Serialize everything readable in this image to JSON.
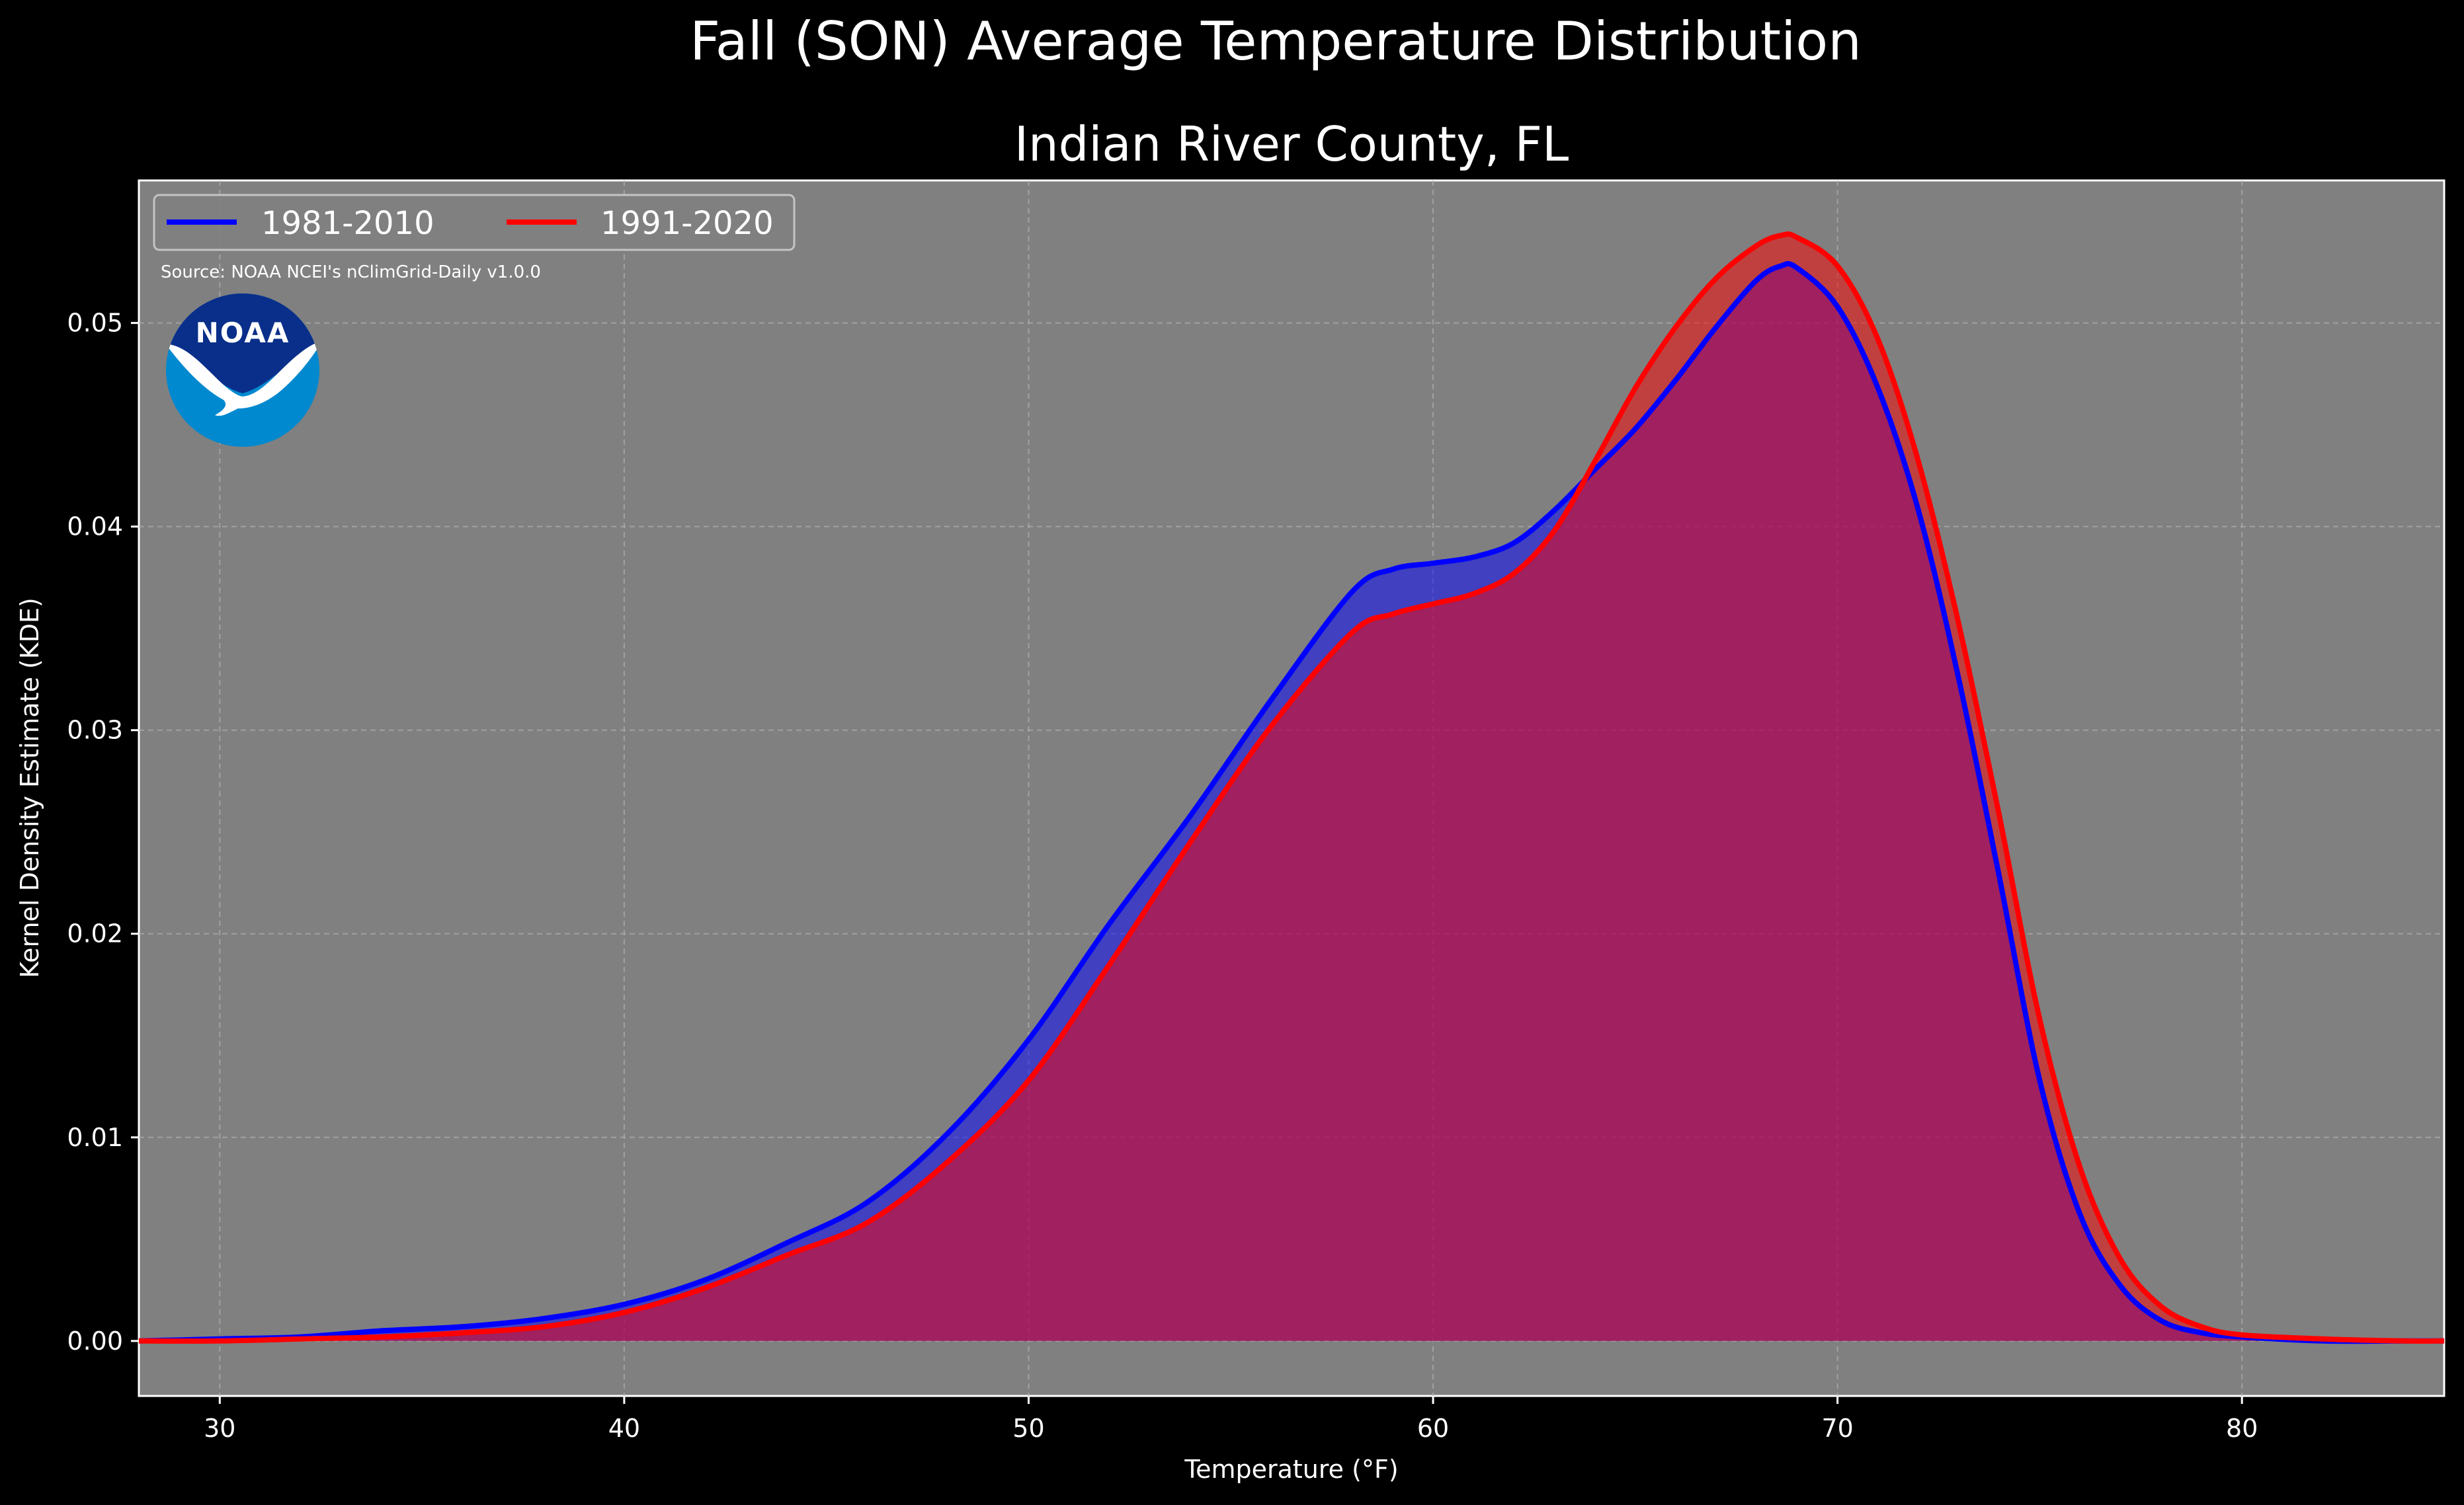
{
  "chart_data": {
    "type": "area",
    "suptitle": "Fall (SON) Average Temperature Distribution",
    "title": "Indian River County, FL",
    "xlabel": "Temperature (°F)",
    "ylabel": "Kernel Density Estimate (KDE)",
    "xlim": [
      28,
      85
    ],
    "ylim": [
      -0.0027,
      0.057
    ],
    "xticks": [
      30,
      40,
      50,
      60,
      70,
      80
    ],
    "yticks": [
      0.0,
      0.01,
      0.02,
      0.03,
      0.04,
      0.05
    ],
    "xtick_labels": [
      "30",
      "40",
      "50",
      "60",
      "70",
      "80"
    ],
    "ytick_labels": [
      "0.00",
      "0.01",
      "0.02",
      "0.03",
      "0.04",
      "0.05"
    ],
    "grid": true,
    "legend_position": "top-left",
    "annotation": "Source: NOAA NCEI's nClimGrid-Daily v1.0.0",
    "logo_text": "NOAA",
    "colors": {
      "background": "#000000",
      "axes_face": "#808080",
      "series_1": "#0000ff",
      "series_2": "#ff0000",
      "logo_blue_dark": "#0a2f8a",
      "logo_blue_light": "#0089cf"
    },
    "series": [
      {
        "name": "1981-2010",
        "color": "#0000ff",
        "x": [
          28,
          30,
          32,
          34,
          36,
          38,
          40,
          42,
          44,
          46,
          48,
          50,
          52,
          54,
          56,
          58,
          59,
          60,
          61,
          62,
          63,
          64,
          65,
          66,
          67,
          68,
          68.6,
          69,
          70,
          71,
          72,
          73,
          74,
          75,
          76,
          77,
          78,
          79,
          80,
          82,
          84,
          85
        ],
        "y": [
          0.0,
          0.0001,
          0.0002,
          0.0005,
          0.0007,
          0.0011,
          0.0018,
          0.003,
          0.0048,
          0.0068,
          0.0102,
          0.0148,
          0.0205,
          0.0258,
          0.0315,
          0.0368,
          0.0379,
          0.0382,
          0.0385,
          0.0392,
          0.0408,
          0.0428,
          0.0448,
          0.0472,
          0.0498,
          0.0521,
          0.0528,
          0.0527,
          0.0508,
          0.0468,
          0.0408,
          0.0325,
          0.0228,
          0.0128,
          0.0062,
          0.0027,
          0.001,
          0.0004,
          0.0002,
          0.0,
          0.0,
          0.0
        ]
      },
      {
        "name": "1991-2020",
        "color": "#ff0000",
        "x": [
          28,
          30,
          32,
          34,
          36,
          38,
          40,
          42,
          44,
          46,
          48,
          50,
          52,
          54,
          56,
          58,
          59,
          60,
          61,
          62,
          63,
          64,
          65,
          66,
          67,
          68,
          68.6,
          69,
          70,
          71,
          72,
          73,
          74,
          75,
          76,
          77,
          78,
          79,
          80,
          82,
          84,
          85
        ],
        "y": [
          0.0,
          0.0,
          0.0001,
          0.0002,
          0.0004,
          0.0007,
          0.0014,
          0.0026,
          0.0042,
          0.0058,
          0.0088,
          0.0128,
          0.0185,
          0.0245,
          0.0302,
          0.0348,
          0.0357,
          0.0362,
          0.0367,
          0.0377,
          0.0398,
          0.0432,
          0.0468,
          0.0498,
          0.0522,
          0.0538,
          0.0543,
          0.0542,
          0.0528,
          0.0492,
          0.0432,
          0.0352,
          0.0258,
          0.0158,
          0.0085,
          0.004,
          0.0017,
          0.0007,
          0.0003,
          0.0001,
          0.0,
          0.0
        ]
      }
    ]
  }
}
